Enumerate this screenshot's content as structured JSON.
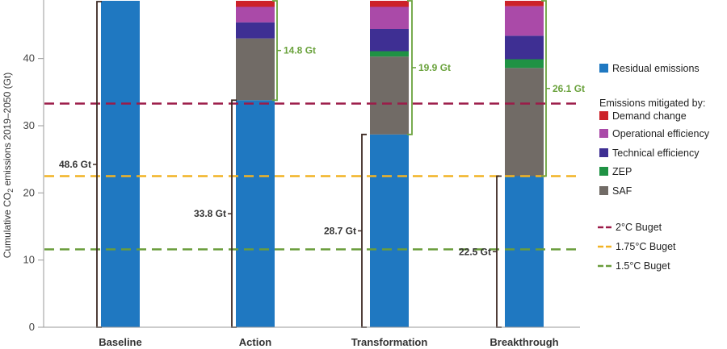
{
  "chart_data": {
    "type": "bar",
    "stacked": true,
    "ylabel_main": "Cumulative CO",
    "ylabel_sub": "2",
    "ylabel_rest": " emissions 2019–2050 (Gt)",
    "ylim": [
      0,
      48.6
    ],
    "yticks": [
      "0",
      "10",
      "20",
      "30",
      "40"
    ],
    "categories": [
      "Baseline",
      "Action",
      "Transformation",
      "Breakthrough"
    ],
    "series": [
      {
        "name": "Residual emissions",
        "color": "#1f78c1",
        "values": [
          48.6,
          33.8,
          28.7,
          22.5
        ]
      },
      {
        "name": "SAF",
        "color": "#716b66",
        "values": [
          0,
          9.2,
          11.6,
          16.1
        ]
      },
      {
        "name": "ZEP",
        "color": "#1f9244",
        "values": [
          0,
          0,
          0.8,
          1.3
        ]
      },
      {
        "name": "Technical efficiency",
        "color": "#3e2f93",
        "values": [
          0,
          2.4,
          3.3,
          3.5
        ]
      },
      {
        "name": "Operational efficiency",
        "color": "#aa4aa8",
        "values": [
          0,
          2.3,
          3.3,
          4.4
        ]
      },
      {
        "name": "Demand change",
        "color": "#cc2229",
        "values": [
          0,
          0.9,
          0.9,
          0.8
        ]
      }
    ],
    "residual_labels": [
      "48.6 Gt",
      "33.8 Gt",
      "28.7 Gt",
      "22.5 Gt"
    ],
    "mitigated_labels": [
      "",
      "14.8 Gt",
      "19.9 Gt",
      "26.1 Gt"
    ],
    "mitigated_color": "#6aa23c",
    "bracket_color": "#3d2a24",
    "budgets": [
      {
        "name": "2°C Buget",
        "value": 33.3,
        "color": "#9c1b48"
      },
      {
        "name": "1.75°C Buget",
        "value": 22.5,
        "color": "#f2b324"
      },
      {
        "name": "1.5°C Buget",
        "value": 11.6,
        "color": "#6a9d3c"
      }
    ],
    "legend": {
      "residual": "Residual emissions",
      "mitigated_header": "Emissions mitigated by:",
      "mitigated_items": [
        "Demand change",
        "Operational efficiency",
        "Technical efficiency",
        "ZEP",
        "SAF"
      ]
    }
  }
}
